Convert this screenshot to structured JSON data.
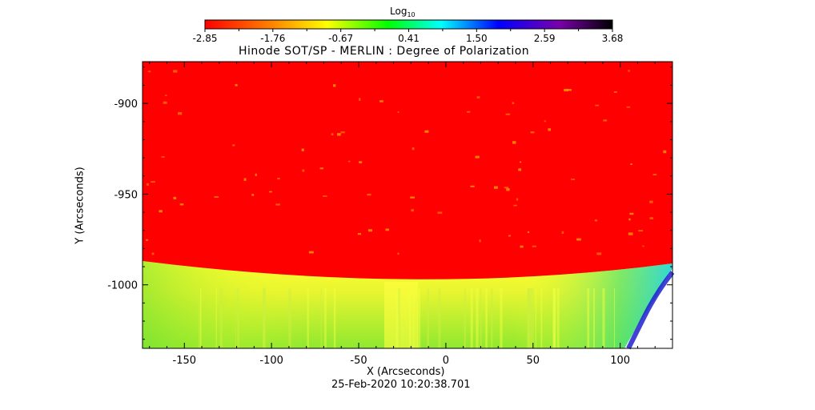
{
  "colorbar": {
    "label": "Log",
    "label_subscript": "10",
    "tick_labels": [
      "-2.85",
      "-1.76",
      "-0.67",
      "0.41",
      "1.50",
      "2.59",
      "3.68"
    ],
    "range": [
      -2.85,
      3.68
    ],
    "colormap": [
      "#ff0000",
      "#ffff00",
      "#00ff00",
      "#00ffff",
      "#0000ff",
      "#8800cc",
      "#000000"
    ]
  },
  "chart_data": {
    "type": "heatmap",
    "title": "Hinode SOT/SP - MERLIN : Degree of Polarization",
    "xlabel": "X (Arcseconds)",
    "ylabel": "Y (Arcseconds)",
    "timestamp": "25-Feb-2020 10:20:38.701",
    "xlim": [
      -174,
      130
    ],
    "ylim": [
      -1035,
      -877
    ],
    "x_ticks": [
      -150,
      -100,
      -50,
      0,
      50,
      100
    ],
    "y_ticks": [
      -900,
      -950,
      -1000
    ],
    "x_tick_labels": [
      "-150",
      "-100",
      "-50",
      "0",
      "50",
      "100"
    ],
    "y_tick_labels": [
      "-900",
      "-950",
      "-1000"
    ],
    "regions": {
      "above_limb_color": "#ff0000",
      "limb_band_color": "#ffff20",
      "on_disk_color": "#a0f030",
      "limb_edge_y": [
        -985,
        -997,
        -985
      ],
      "limb_edge_x": [
        -174,
        -20,
        130
      ]
    }
  }
}
